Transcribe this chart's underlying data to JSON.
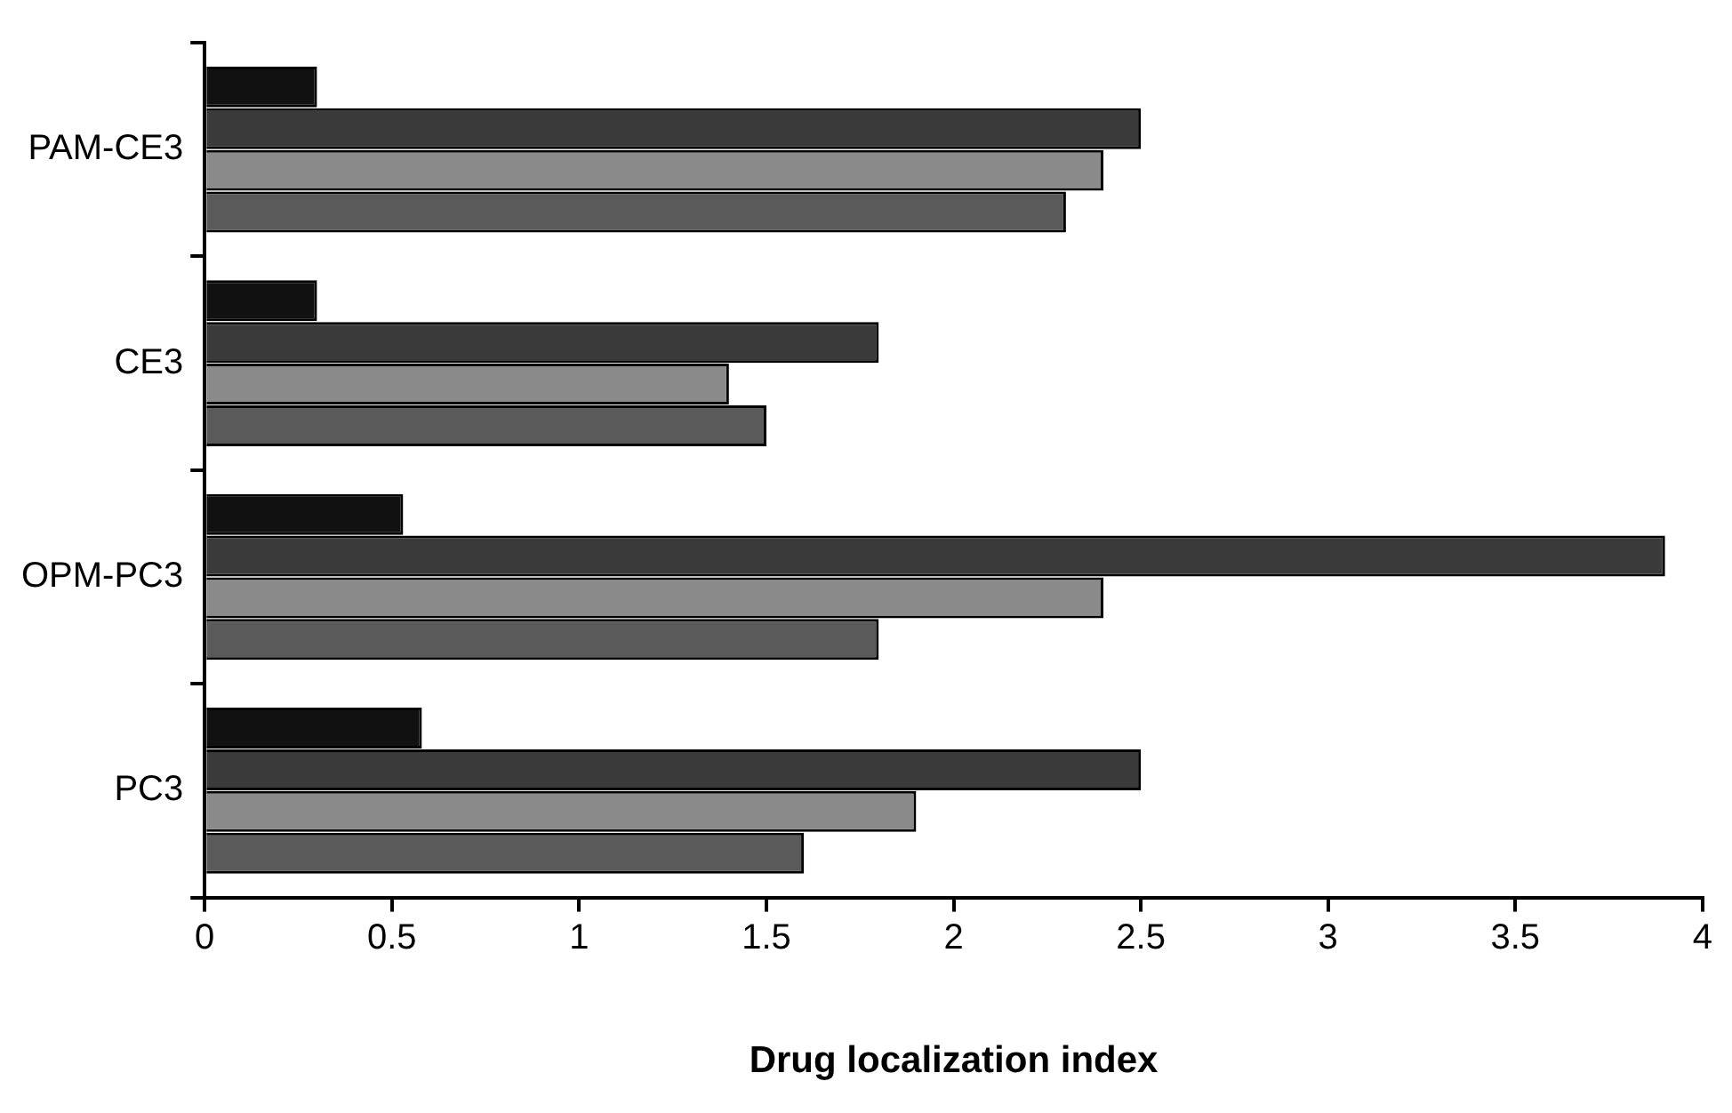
{
  "chart_data": {
    "type": "bar",
    "orientation": "horizontal",
    "xlabel": "Drug localization index",
    "categories": [
      "PAM-CE3",
      "CE3",
      "OPM-PC3",
      "PC3"
    ],
    "series": [
      {
        "color": "#111111",
        "values": [
          0.3,
          0.3,
          0.53,
          0.58
        ]
      },
      {
        "color": "#3a3a3a",
        "values": [
          2.5,
          1.8,
          3.9,
          2.5
        ]
      },
      {
        "color": "#8a8a8a",
        "values": [
          2.4,
          1.4,
          2.4,
          1.9
        ]
      },
      {
        "color": "#5a5a5a",
        "values": [
          2.3,
          1.5,
          1.8,
          1.6
        ]
      }
    ],
    "xlim": [
      0,
      4
    ],
    "xticks": [
      0,
      0.5,
      1,
      1.5,
      2,
      2.5,
      3,
      3.5,
      4
    ],
    "grid": false,
    "legend": false
  }
}
